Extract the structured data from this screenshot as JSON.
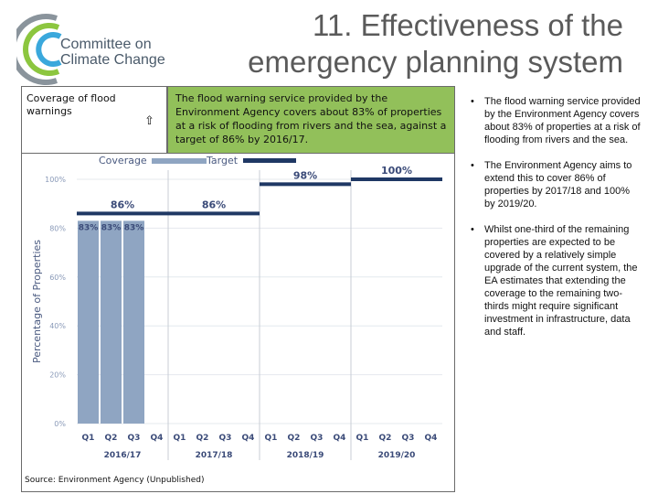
{
  "header": {
    "logo_line1": "Committee on",
    "logo_line2": "Climate Change",
    "title_line1": "11. Effectiveness of the",
    "title_line2": "emergency planning system"
  },
  "callout": {
    "coverage_label": "Coverage of flood warnings",
    "arrow_icon": "up-arrow-icon",
    "text": "The flood warning service provided by the Environment Agency covers about 83% of properties at a risk of flooding from rivers and the sea, against a target of 86% by 2016/17."
  },
  "chart_data": {
    "type": "bar",
    "ylabel": "Percentage of Properties",
    "ylim": [
      0,
      100
    ],
    "yticks": [
      "0%",
      "20%",
      "40%",
      "60%",
      "80%",
      "100%"
    ],
    "legend": [
      {
        "name": "Coverage",
        "color": "#8fa5c2"
      },
      {
        "name": "Target",
        "color": "#1f3864"
      }
    ],
    "years": [
      "2016/17",
      "2017/18",
      "2018/19",
      "2019/20"
    ],
    "quarters": [
      "Q1",
      "Q2",
      "Q3",
      "Q4"
    ],
    "coverage": {
      "categories": [
        "Q1 2016/17",
        "Q2 2016/17",
        "Q3 2016/17"
      ],
      "values": [
        83,
        83,
        83
      ],
      "labels": [
        "83%",
        "83%",
        "83%"
      ]
    },
    "target": {
      "segments": [
        {
          "from": 0,
          "to": 4,
          "value": 86,
          "label": "86%"
        },
        {
          "from": 4,
          "to": 8,
          "value": 86,
          "label": "86%"
        },
        {
          "from": 8,
          "to": 12,
          "value": 98,
          "label": "98%"
        },
        {
          "from": 12,
          "to": 16,
          "value": 100,
          "label": "100%"
        }
      ]
    },
    "source": "Source: Environment Agency (Unpublished)"
  },
  "bullets": [
    "The flood warning service provided by the Environment Agency covers about 83% of properties at a risk of flooding from rivers and the sea.",
    "The Environment Agency aims to extend this to cover 86% of properties by 2017/18 and 100% by 2019/20.",
    "Whilst one-third of the remaining properties are expected to be covered by a relatively simple upgrade of the current system, the EA estimates that extending the coverage to the remaining two-thirds might require significant investment in infrastructure, data and staff."
  ],
  "bullet_marker": "•"
}
